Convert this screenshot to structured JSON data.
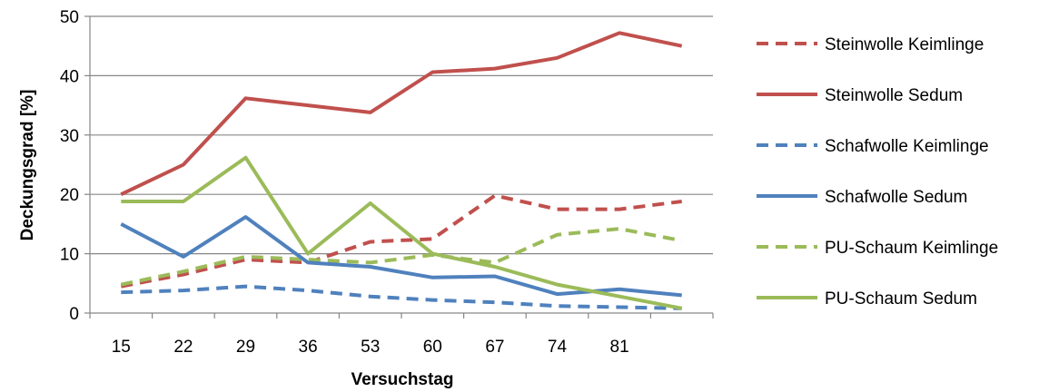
{
  "chart_data": {
    "type": "line",
    "title": "",
    "xlabel": "Versuchstag",
    "ylabel": "Deckungsgrad [%]",
    "ylim": [
      0,
      50
    ],
    "yticks": [
      0,
      10,
      20,
      30,
      40,
      50
    ],
    "categories": [
      "15",
      "22",
      "29",
      "36",
      "53",
      "60",
      "67",
      "74",
      "81",
      ""
    ],
    "grid": "horizontal",
    "legend_position": "right",
    "series": [
      {
        "name": "Steinwolle Keimlinge",
        "color": "#c0504d",
        "dash": "dashed",
        "values": [
          4.5,
          6.5,
          9.0,
          8.5,
          12.0,
          12.5,
          19.8,
          17.5,
          17.5,
          18.8
        ]
      },
      {
        "name": "Steinwolle Sedum",
        "color": "#c0504d",
        "dash": "solid",
        "values": [
          20.0,
          25.0,
          36.2,
          35.0,
          33.8,
          40.6,
          41.2,
          43.0,
          47.2,
          45.0
        ]
      },
      {
        "name": "Schafwolle Keimlinge",
        "color": "#4f81bd",
        "dash": "dashed",
        "values": [
          3.5,
          3.8,
          4.5,
          3.8,
          2.8,
          2.2,
          1.8,
          1.2,
          1.0,
          0.8
        ]
      },
      {
        "name": "Schafwolle Sedum",
        "color": "#4f81bd",
        "dash": "solid",
        "values": [
          15.0,
          9.5,
          16.2,
          8.5,
          7.8,
          6.0,
          6.2,
          3.2,
          4.0,
          3.0
        ]
      },
      {
        "name": "PU-Schaum Keimlinge",
        "color": "#9bbb59",
        "dash": "dashed",
        "values": [
          4.8,
          7.0,
          9.5,
          9.0,
          8.5,
          9.8,
          8.5,
          13.2,
          14.2,
          12.2
        ]
      },
      {
        "name": "PU-Schaum Sedum",
        "color": "#9bbb59",
        "dash": "solid",
        "values": [
          18.8,
          18.8,
          26.2,
          10.0,
          18.5,
          10.0,
          7.8,
          4.8,
          2.8,
          0.8
        ]
      }
    ]
  }
}
